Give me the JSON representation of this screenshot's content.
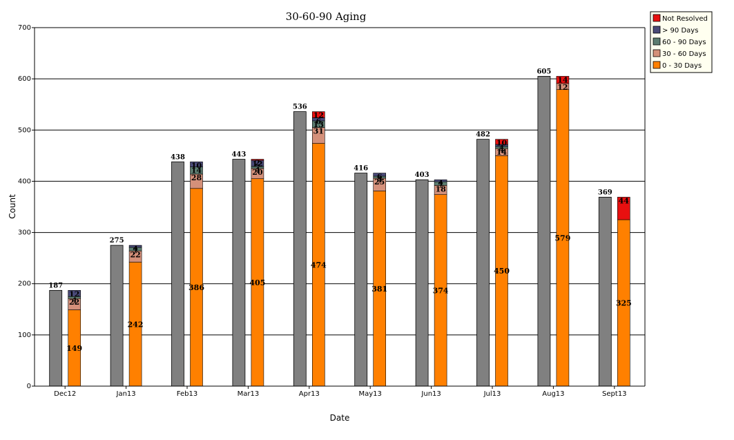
{
  "chart_data": {
    "type": "bar",
    "title": "30-60-90 Aging",
    "xlabel": "Date",
    "ylabel": "Count",
    "ylim": [
      0,
      700
    ],
    "yticks": [
      0,
      100,
      200,
      300,
      400,
      500,
      600,
      700
    ],
    "grid": true,
    "legend_position": "top-right",
    "categories": [
      "Dec12",
      "Jan13",
      "Feb13",
      "Mar13",
      "Apr13",
      "May13",
      "Jun13",
      "Jul13",
      "Aug13",
      "Sept13"
    ],
    "totals": [
      187,
      275,
      438,
      443,
      536,
      416,
      403,
      482,
      605,
      369
    ],
    "total_color": "#808080",
    "series": [
      {
        "name": "0 - 30 Days",
        "color": "#ff8000",
        "values": [
          149,
          242,
          386,
          405,
          474,
          381,
          374,
          450,
          579,
          325
        ]
      },
      {
        "name": "30 - 60 Days",
        "color": "#d4907a",
        "values": [
          22,
          22,
          28,
          20,
          31,
          25,
          18,
          14,
          12,
          0
        ]
      },
      {
        "name": "60 - 90 Days",
        "color": "#5c7c70",
        "values": [
          4,
          7,
          14,
          4,
          13,
          4,
          7,
          4,
          0,
          0
        ]
      },
      {
        "name": "> 90 Days",
        "color": "#4a4a78",
        "values": [
          12,
          4,
          10,
          12,
          6,
          6,
          4,
          4,
          0,
          0
        ]
      },
      {
        "name": "Not Resolved",
        "color": "#e81010",
        "values": [
          0,
          0,
          0,
          2,
          12,
          0,
          0,
          10,
          14,
          44
        ]
      }
    ],
    "segment_labels": [
      [
        "149",
        "22",
        "4",
        "12",
        ""
      ],
      [
        "242",
        "22",
        "7",
        "4",
        ""
      ],
      [
        "386",
        "28",
        "14",
        "10",
        ""
      ],
      [
        "405",
        "20",
        "4",
        "12",
        "2"
      ],
      [
        "474",
        "31",
        "13",
        "6",
        "12"
      ],
      [
        "381",
        "25",
        "4",
        "6",
        ""
      ],
      [
        "374",
        "18",
        "7",
        "4",
        ""
      ],
      [
        "450",
        "14",
        "4",
        "4",
        "10"
      ],
      [
        "579",
        "12",
        "",
        "",
        "14"
      ],
      [
        "325",
        "",
        "",
        "",
        "44"
      ]
    ],
    "legend": [
      {
        "name": "Not Resolved",
        "color": "#e81010"
      },
      {
        "name": "> 90 Days",
        "color": "#4a4a78"
      },
      {
        "name": "60 - 90 Days",
        "color": "#5c7c70"
      },
      {
        "name": "30 - 60 Days",
        "color": "#d4907a"
      },
      {
        "name": "0 - 30 Days",
        "color": "#ff8000"
      }
    ]
  }
}
